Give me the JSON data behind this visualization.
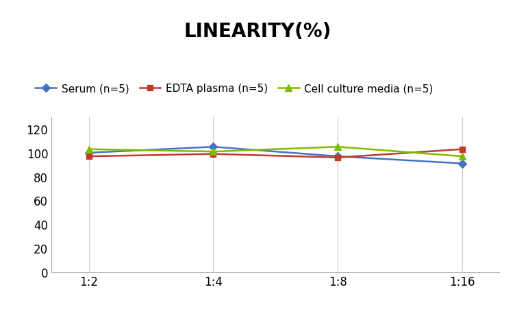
{
  "title": "LINEARITY(%)",
  "x_labels": [
    "1:2",
    "1:4",
    "1:8",
    "1:16"
  ],
  "x_positions": [
    0,
    1,
    2,
    3
  ],
  "series": [
    {
      "label": "Serum (n=5)",
      "values": [
        100,
        105,
        97,
        91
      ],
      "color": "#4472C4",
      "marker": "D",
      "marker_size": 6
    },
    {
      "label": "EDTA plasma (n=5)",
      "values": [
        97,
        99,
        96,
        103
      ],
      "color": "#C0392B",
      "marker": "s",
      "marker_size": 6
    },
    {
      "label": "Cell culture media (n=5)",
      "values": [
        103,
        101,
        105,
        97
      ],
      "color": "#7FBA00",
      "marker": "^",
      "marker_size": 7
    }
  ],
  "ylim": [
    0,
    130
  ],
  "yticks": [
    0,
    20,
    40,
    60,
    80,
    100,
    120
  ],
  "background_color": "#FFFFFF",
  "grid_color": "#CCCCCC",
  "title_fontsize": 20,
  "legend_fontsize": 11,
  "tick_fontsize": 12,
  "line_width": 1.8
}
